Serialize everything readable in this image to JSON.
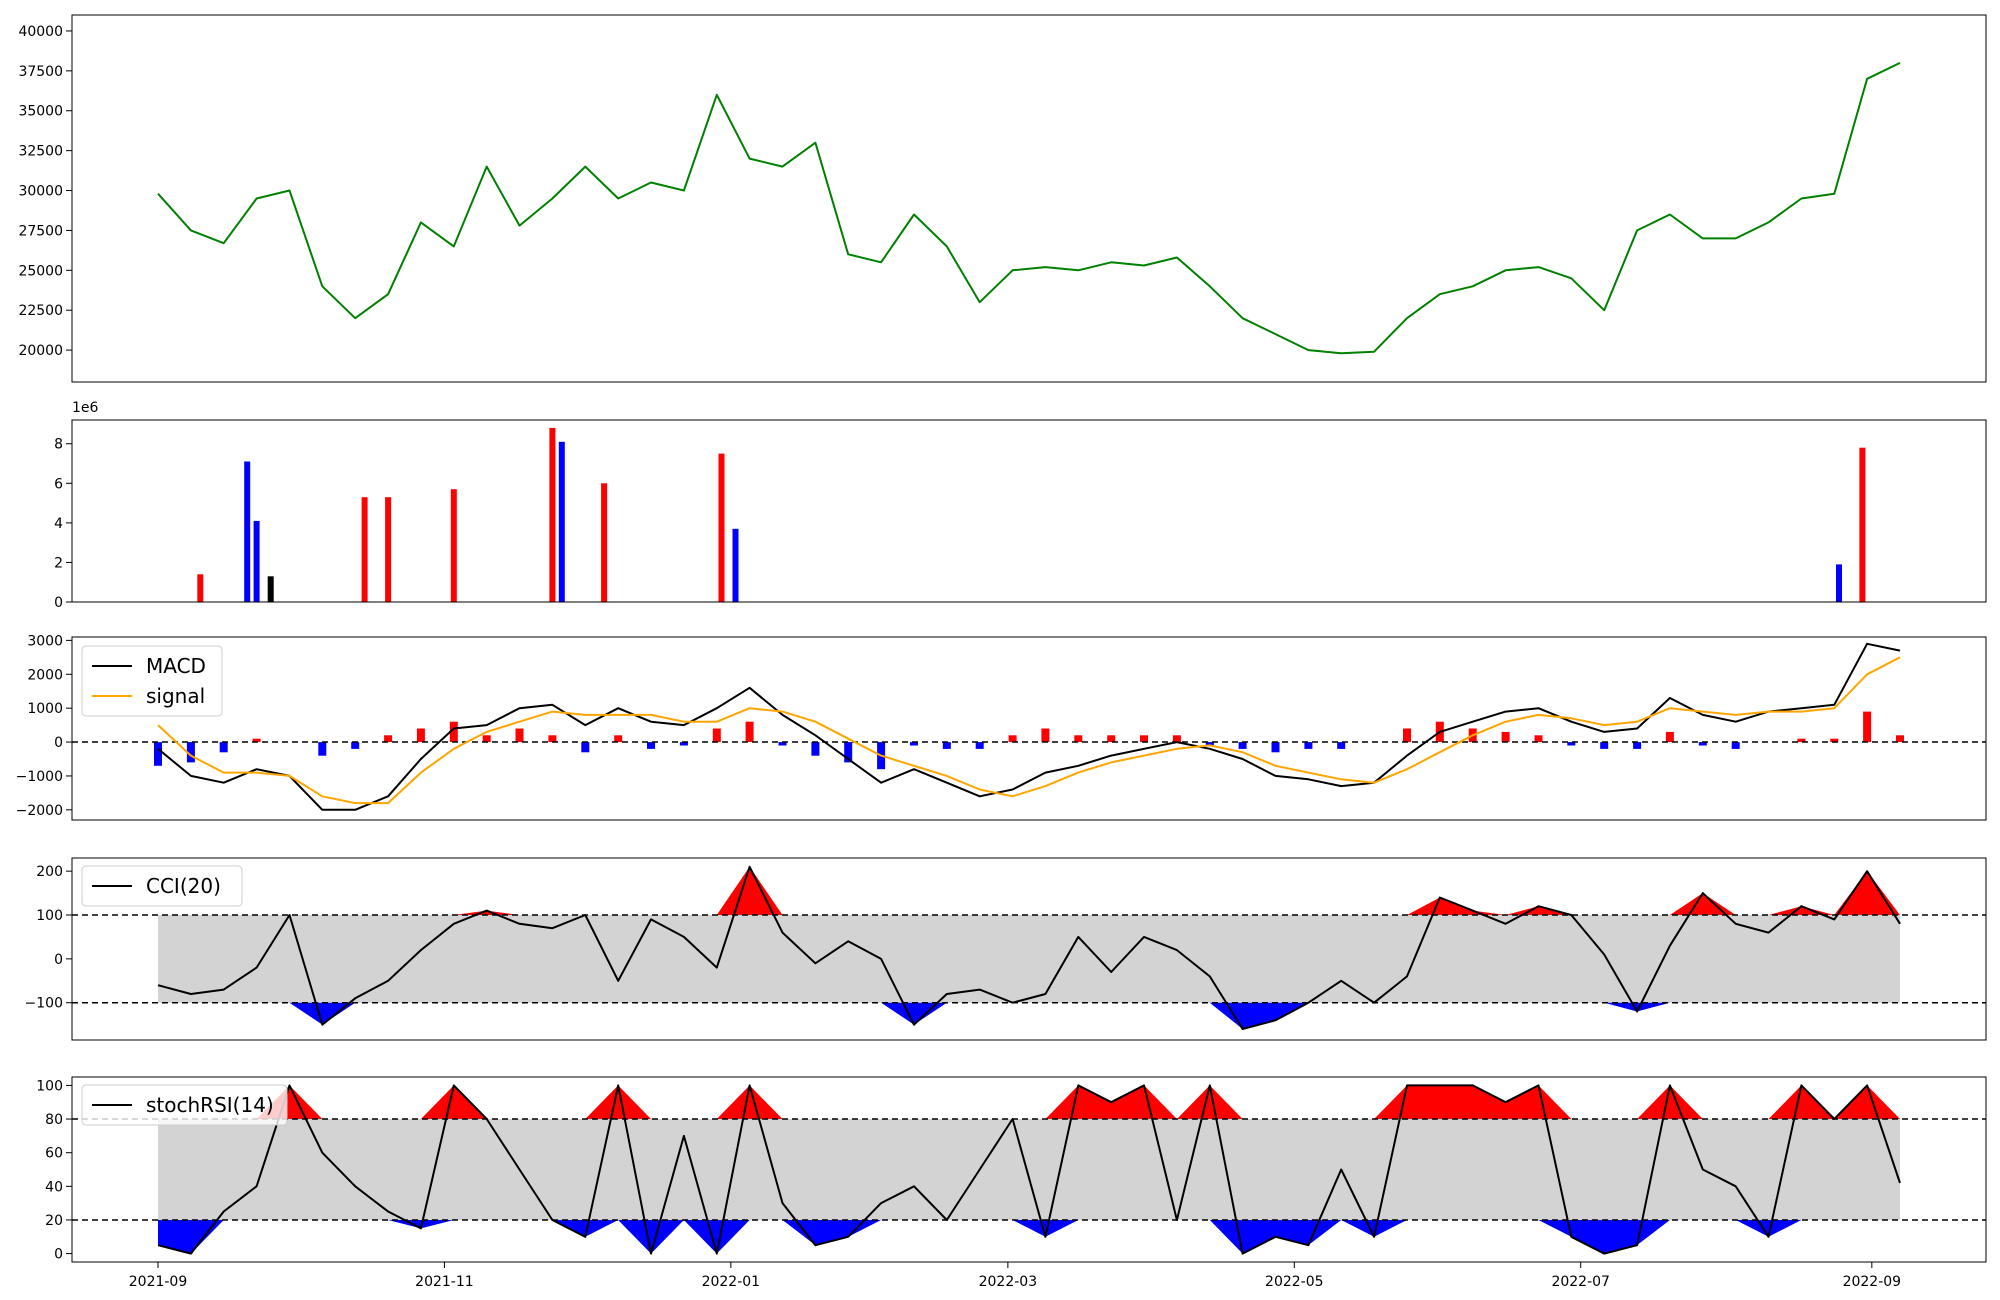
{
  "chart_data": [
    {
      "type": "line",
      "name": "price",
      "ylim": [
        18000,
        41000
      ],
      "yticks": [
        "20000",
        "22500",
        "25000",
        "27500",
        "30000",
        "32500",
        "35000",
        "37500",
        "40000"
      ],
      "color": "#008000",
      "x": [
        "2021-09-01",
        "2021-09-08",
        "2021-09-15",
        "2021-09-22",
        "2021-09-29",
        "2021-10-06",
        "2021-10-13",
        "2021-10-20",
        "2021-10-27",
        "2021-11-03",
        "2021-11-10",
        "2021-11-17",
        "2021-11-24",
        "2021-12-01",
        "2021-12-08",
        "2021-12-15",
        "2021-12-22",
        "2021-12-29",
        "2022-01-05",
        "2022-01-12",
        "2022-01-19",
        "2022-01-26",
        "2022-02-02",
        "2022-02-09",
        "2022-02-16",
        "2022-02-23",
        "2022-03-02",
        "2022-03-09",
        "2022-03-16",
        "2022-03-23",
        "2022-03-30",
        "2022-04-06",
        "2022-04-13",
        "2022-04-20",
        "2022-04-27",
        "2022-05-04",
        "2022-05-11",
        "2022-05-18",
        "2022-05-25",
        "2022-06-01",
        "2022-06-08",
        "2022-06-15",
        "2022-06-22",
        "2022-06-29",
        "2022-07-06",
        "2022-07-13",
        "2022-07-20",
        "2022-07-27",
        "2022-08-03",
        "2022-08-10",
        "2022-08-17",
        "2022-08-24",
        "2022-08-31",
        "2022-09-07"
      ],
      "y": [
        29800,
        27500,
        26700,
        29500,
        30000,
        24000,
        22000,
        23500,
        28000,
        26500,
        31500,
        27800,
        29500,
        31500,
        29500,
        30500,
        30000,
        36000,
        32000,
        31500,
        33000,
        26000,
        25500,
        28500,
        26500,
        23000,
        25000,
        25200,
        25000,
        25500,
        25300,
        25800,
        24000,
        22000,
        21000,
        20000,
        19800,
        19900,
        22000,
        23500,
        24000,
        25000,
        25200,
        24500,
        22500,
        27500,
        28500,
        27000,
        27000,
        28000,
        29500,
        29800,
        37000,
        38000
      ]
    },
    {
      "type": "bar",
      "name": "volume",
      "multiplier_label": "1e6",
      "ylim": [
        0,
        9200000
      ],
      "yticks": [
        "0",
        "2",
        "4",
        "6",
        "8"
      ],
      "colors": {
        "up": "#ff0000",
        "down": "#0000ff",
        "flat": "#000000"
      },
      "x": [
        "2021-09-10",
        "2021-09-20",
        "2021-09-22",
        "2021-09-25",
        "2021-10-15",
        "2021-10-20",
        "2021-11-03",
        "2021-11-24",
        "2021-11-26",
        "2021-12-05",
        "2021-12-30",
        "2022-01-02",
        "2022-08-25",
        "2022-08-30"
      ],
      "values": [
        1400000,
        7100000,
        4100000,
        1300000,
        5300000,
        5300000,
        5700000,
        8800000,
        8100000,
        6000000,
        7500000,
        3700000,
        1900000,
        7800000
      ],
      "directions": [
        "up",
        "down",
        "down",
        "flat",
        "up",
        "up",
        "up",
        "up",
        "down",
        "up",
        "up",
        "down",
        "down",
        "up"
      ]
    },
    {
      "type": "line",
      "name": "macd",
      "ylim": [
        -2300,
        3100
      ],
      "yticks": [
        "−2000",
        "−1000",
        "0",
        "1000",
        "2000",
        "3000"
      ],
      "series": [
        {
          "name": "MACD",
          "color": "#000000",
          "values": [
            -200,
            -1000,
            -1200,
            -800,
            -1000,
            -2000,
            -2000,
            -1600,
            -500,
            400,
            500,
            1000,
            1100,
            500,
            1000,
            600,
            500,
            1000,
            1600,
            800,
            200,
            -500,
            -1200,
            -800,
            -1200,
            -1600,
            -1400,
            -900,
            -700,
            -400,
            -200,
            0,
            -200,
            -500,
            -1000,
            -1100,
            -1300,
            -1200,
            -400,
            300,
            600,
            900,
            1000,
            600,
            300,
            400,
            1300,
            800,
            600,
            900,
            1000,
            1100,
            2900,
            2700
          ]
        },
        {
          "name": "signal",
          "color": "#ffa500",
          "values": [
            500,
            -400,
            -900,
            -900,
            -1000,
            -1600,
            -1800,
            -1800,
            -900,
            -200,
            300,
            600,
            900,
            800,
            800,
            800,
            600,
            600,
            1000,
            900,
            600,
            100,
            -400,
            -700,
            -1000,
            -1400,
            -1600,
            -1300,
            -900,
            -600,
            -400,
            -200,
            -100,
            -300,
            -700,
            -900,
            -1100,
            -1200,
            -800,
            -300,
            200,
            600,
            800,
            700,
            500,
            600,
            1000,
            900,
            800,
            900,
            900,
            1000,
            2000,
            2500
          ]
        }
      ],
      "histogram": [
        -700,
        -600,
        -300,
        100,
        0,
        -400,
        -200,
        200,
        400,
        600,
        200,
        400,
        200,
        -300,
        200,
        -200,
        -100,
        400,
        600,
        -100,
        -400,
        -600,
        -800,
        -100,
        -200,
        -200,
        200,
        400,
        200,
        200,
        200,
        200,
        -100,
        -200,
        -300,
        -200,
        -200,
        0,
        400,
        600,
        400,
        300,
        200,
        -100,
        -200,
        -200,
        300,
        -100,
        -200,
        0,
        100,
        100,
        900,
        200
      ],
      "legend": [
        "MACD",
        "signal"
      ]
    },
    {
      "type": "line",
      "name": "cci",
      "ylim": [
        -185,
        230
      ],
      "yticks": [
        "−100",
        "0",
        "100",
        "200"
      ],
      "thresholds": [
        100,
        -100
      ],
      "series": [
        {
          "name": "CCI(20)",
          "color": "#000000",
          "values": [
            -60,
            -80,
            -70,
            -20,
            100,
            -150,
            -90,
            -50,
            20,
            80,
            110,
            80,
            70,
            100,
            -50,
            90,
            50,
            -20,
            210,
            60,
            -10,
            40,
            0,
            -150,
            -80,
            -70,
            -100,
            -80,
            50,
            -30,
            50,
            20,
            -40,
            -160,
            -140,
            -100,
            -50,
            -100,
            -40,
            140,
            110,
            80,
            120,
            100,
            10,
            -120,
            30,
            150,
            80,
            60,
            120,
            90,
            200,
            80
          ]
        }
      ],
      "legend": [
        "CCI(20)"
      ],
      "colors": {
        "overbought": "#ff0000",
        "oversold": "#0000ff",
        "band": "#d3d3d3"
      }
    },
    {
      "type": "line",
      "name": "stochrsi",
      "ylim": [
        -5,
        105
      ],
      "yticks": [
        "0",
        "20",
        "40",
        "60",
        "80",
        "100"
      ],
      "thresholds": [
        80,
        20
      ],
      "series": [
        {
          "name": "stochRSI(14)",
          "color": "#000000",
          "values": [
            5,
            0,
            25,
            40,
            100,
            60,
            40,
            25,
            15,
            100,
            80,
            50,
            20,
            10,
            100,
            0,
            70,
            0,
            100,
            30,
            5,
            10,
            30,
            40,
            20,
            50,
            80,
            10,
            100,
            90,
            100,
            20,
            100,
            0,
            10,
            5,
            50,
            10,
            100,
            100,
            100,
            90,
            100,
            10,
            0,
            5,
            100,
            50,
            40,
            10,
            100,
            80,
            100,
            42
          ]
        }
      ],
      "legend": [
        "stochRSI(14)"
      ],
      "colors": {
        "overbought": "#ff0000",
        "oversold": "#0000ff",
        "band": "#d3d3d3"
      }
    }
  ],
  "x_axis": {
    "ticks": [
      "2021-09",
      "2021-11",
      "2022-01",
      "2022-03",
      "2022-05",
      "2022-07",
      "2022-09"
    ]
  }
}
